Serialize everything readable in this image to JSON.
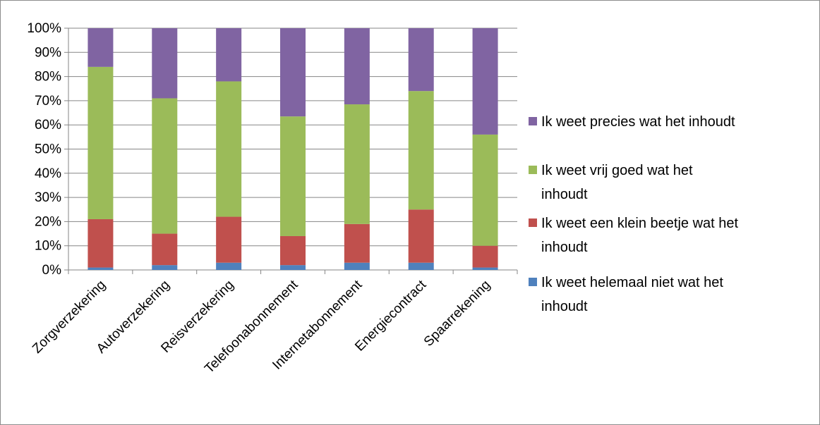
{
  "chart_data": {
    "type": "bar",
    "stacked": true,
    "normalized_percent": true,
    "categories": [
      "Zorgverzekering",
      "Autoverzekering",
      "Reisverzekering",
      "Telefoonabonnement",
      "Internetabonnement",
      "Energiecontract",
      "Spaarrekening"
    ],
    "series": [
      {
        "name": "Ik weet helemaal niet wat het inhoudt",
        "color": "#4f81bd",
        "values": [
          1,
          2,
          3,
          2,
          3,
          3,
          1
        ]
      },
      {
        "name": "Ik weet een klein beetje wat het inhoudt",
        "color": "#c0504d",
        "values": [
          20,
          13,
          19,
          12,
          16,
          22,
          9
        ]
      },
      {
        "name": "Ik weet vrij goed wat het inhoudt",
        "color": "#9bbb59",
        "values": [
          63,
          56,
          56,
          49.5,
          49.5,
          49,
          46
        ]
      },
      {
        "name": "Ik weet  precies wat het inhoudt",
        "color": "#8064a2",
        "values": [
          16,
          29,
          22,
          36.5,
          31.5,
          26,
          44
        ]
      }
    ],
    "ylim": [
      0,
      100
    ],
    "yticks": [
      "0%",
      "10%",
      "20%",
      "30%",
      "40%",
      "50%",
      "60%",
      "70%",
      "80%",
      "90%",
      "100%"
    ],
    "grid": true,
    "legend": {
      "placement": "right",
      "order": [
        {
          "label_lines": [
            "Ik weet  precies wat het inhoudt"
          ],
          "color": "#8064a2"
        },
        {
          "label_lines": [
            "Ik weet vrij goed wat het",
            "inhoudt"
          ],
          "color": "#9bbb59"
        },
        {
          "label_lines": [
            "Ik weet een klein beetje wat het",
            "inhoudt"
          ],
          "color": "#c0504d"
        },
        {
          "label_lines": [
            "Ik weet helemaal niet wat het",
            "inhoudt"
          ],
          "color": "#4f81bd"
        }
      ]
    },
    "title": "",
    "xlabel": "",
    "ylabel": ""
  }
}
